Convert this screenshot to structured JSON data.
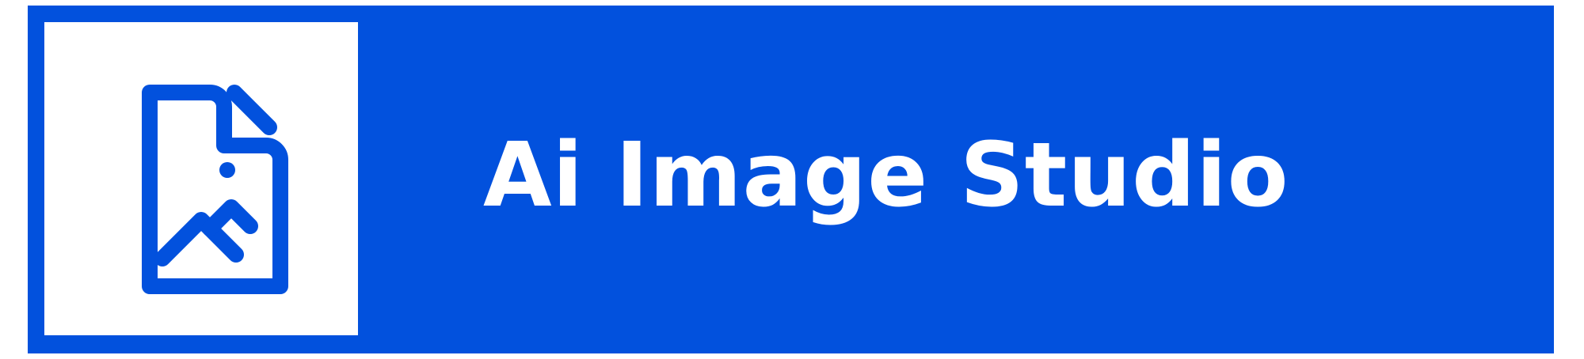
{
  "brand": {
    "title": "Ai Image Studio",
    "icon": "image-file-icon",
    "colors": {
      "background": "#0251dd",
      "icon_tile": "#ffffff",
      "title_text": "#ffffff"
    }
  }
}
